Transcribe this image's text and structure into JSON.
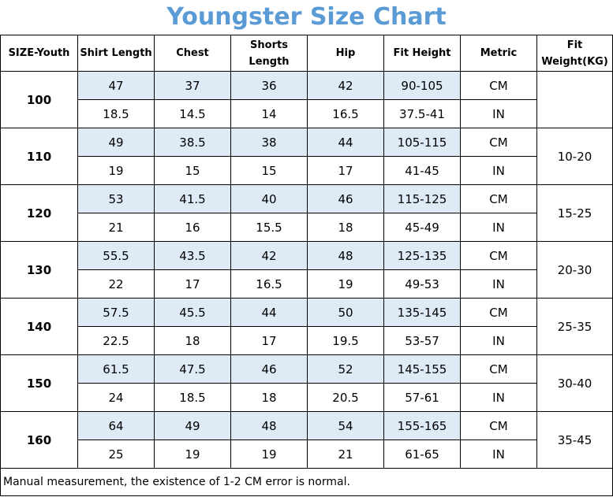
{
  "title": "Youngster Size Chart",
  "colors": {
    "title": "#5b9bd5",
    "highlight": "#deebf7",
    "border": "#000000"
  },
  "headers": [
    "SIZE-Youth",
    "Shirt Length",
    "Chest",
    "Shorts Length",
    "Hip",
    "Fit Height",
    "Metric",
    "Fit Weight(KG)"
  ],
  "rows": [
    {
      "size": "100",
      "cm": [
        "47",
        "37",
        "36",
        "42",
        "90-105",
        "CM"
      ],
      "in": [
        "18.5",
        "14.5",
        "14",
        "16.5",
        "37.5-41",
        "IN"
      ],
      "weight": ""
    },
    {
      "size": "110",
      "cm": [
        "49",
        "38.5",
        "38",
        "44",
        "105-115",
        "CM"
      ],
      "in": [
        "19",
        "15",
        "15",
        "17",
        "41-45",
        "IN"
      ],
      "weight": "10-20"
    },
    {
      "size": "120",
      "cm": [
        "53",
        "41.5",
        "40",
        "46",
        "115-125",
        "CM"
      ],
      "in": [
        "21",
        "16",
        "15.5",
        "18",
        "45-49",
        "IN"
      ],
      "weight": "15-25"
    },
    {
      "size": "130",
      "cm": [
        "55.5",
        "43.5",
        "42",
        "48",
        "125-135",
        "CM"
      ],
      "in": [
        "22",
        "17",
        "16.5",
        "19",
        "49-53",
        "IN"
      ],
      "weight": "20-30"
    },
    {
      "size": "140",
      "cm": [
        "57.5",
        "45.5",
        "44",
        "50",
        "135-145",
        "CM"
      ],
      "in": [
        "22.5",
        "18",
        "17",
        "19.5",
        "53-57",
        "IN"
      ],
      "weight": "25-35"
    },
    {
      "size": "150",
      "cm": [
        "61.5",
        "47.5",
        "46",
        "52",
        "145-155",
        "CM"
      ],
      "in": [
        "24",
        "18.5",
        "18",
        "20.5",
        "57-61",
        "IN"
      ],
      "weight": "30-40"
    },
    {
      "size": "160",
      "cm": [
        "64",
        "49",
        "48",
        "54",
        "155-165",
        "CM"
      ],
      "in": [
        "25",
        "19",
        "19",
        "21",
        "61-65",
        "IN"
      ],
      "weight": "35-45"
    }
  ],
  "note": "Manual measurement, the existence of 1-2 CM error is normal."
}
